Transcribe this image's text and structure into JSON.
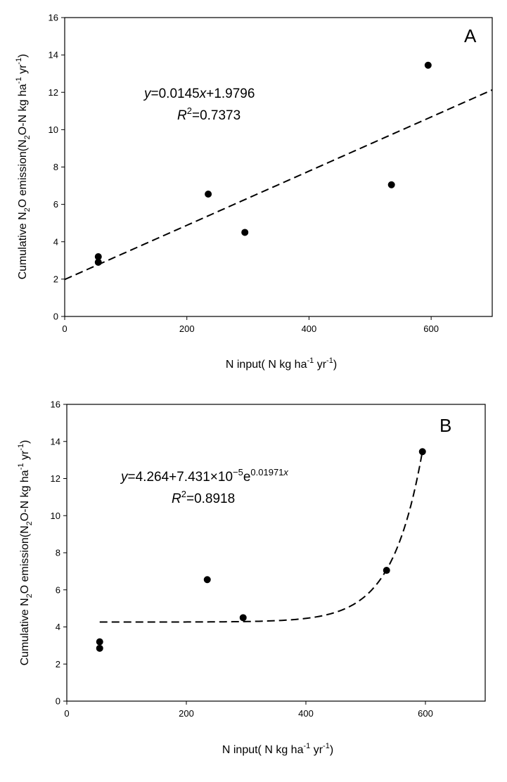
{
  "chart_data": [
    {
      "type": "scatter",
      "panel": "A",
      "xlabel": {
        "pre": "N input( N kg ha",
        "sup1": "-1",
        "mid": " yr",
        "sup2": "-1",
        "post": ")"
      },
      "ylabel": {
        "pre": "Cumulative N",
        "sub": "2",
        "mid": "O emission(N",
        "sub2": "2",
        "mid2": "O-N kg ha",
        "sup1": "-1",
        "mid3": " yr",
        "sup2": "-1",
        "post": ")"
      },
      "xlim": [
        0,
        700
      ],
      "ylim": [
        0,
        16
      ],
      "xticks": [
        0,
        200,
        400,
        600
      ],
      "yticks": [
        0,
        2,
        4,
        6,
        8,
        10,
        12,
        14,
        16
      ],
      "points": [
        {
          "x": 55,
          "y": 3.2
        },
        {
          "x": 55,
          "y": 2.9
        },
        {
          "x": 235,
          "y": 6.55
        },
        {
          "x": 295,
          "y": 4.5
        },
        {
          "x": 535,
          "y": 7.05
        },
        {
          "x": 595,
          "y": 13.45
        }
      ],
      "fit": {
        "kind": "linear",
        "slope": 0.0145,
        "intercept": 1.9796,
        "x_range": [
          0,
          700
        ]
      },
      "equation": {
        "y": "y",
        "rest": "=0.0145",
        "x": "x",
        "tail": "+1.9796"
      },
      "r2": {
        "R": "R",
        "sup": "2",
        "value": "=0.7373"
      }
    },
    {
      "type": "scatter",
      "panel": "B",
      "xlabel": {
        "pre": "N input( N kg ha",
        "sup1": "-1",
        "mid": " yr",
        "sup2": "-1",
        "post": ")"
      },
      "ylabel": {
        "pre": "Cumulative N",
        "sub": "2",
        "mid": "O emission(N",
        "sub2": "2",
        "mid2": "O-N kg ha",
        "sup1": "-1",
        "mid3": " yr",
        "sup2": "-1",
        "post": ")"
      },
      "xlim": [
        0,
        700
      ],
      "ylim": [
        0,
        16
      ],
      "xticks": [
        0,
        200,
        400,
        600
      ],
      "yticks": [
        0,
        2,
        4,
        6,
        8,
        10,
        12,
        14,
        16
      ],
      "points": [
        {
          "x": 55,
          "y": 3.2
        },
        {
          "x": 55,
          "y": 2.85
        },
        {
          "x": 235,
          "y": 6.55
        },
        {
          "x": 295,
          "y": 4.5
        },
        {
          "x": 535,
          "y": 7.05
        },
        {
          "x": 595,
          "y": 13.45
        }
      ],
      "fit": {
        "kind": "exponential",
        "a": 4.264,
        "b": 7.431e-05,
        "c": 0.01971,
        "x_range": [
          55,
          595
        ]
      },
      "equation": {
        "y": "y",
        "rest": "=4.264+7.431×10",
        "exp1": "−5",
        "e": "e",
        "exp2": "0.01971",
        "x": "x"
      },
      "r2": {
        "R": "R",
        "sup": "2",
        "value": "=0.8918"
      }
    }
  ]
}
